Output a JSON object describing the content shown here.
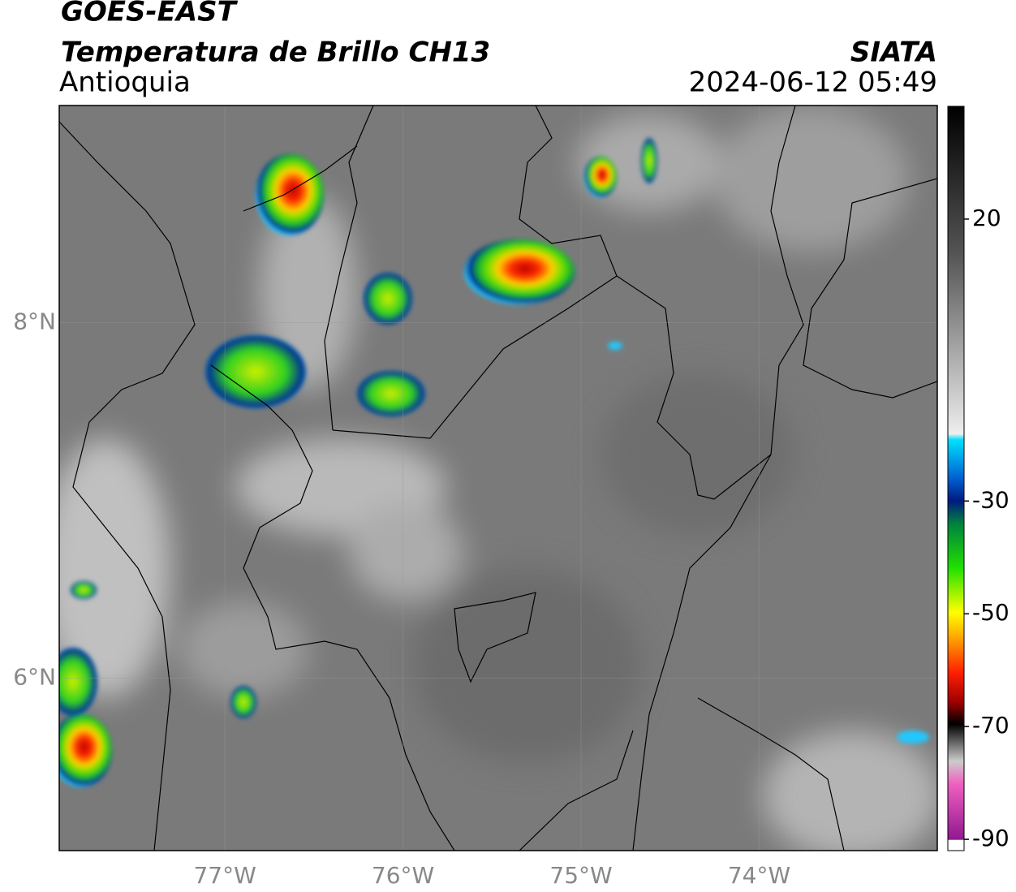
{
  "header": {
    "title": "GOES-EAST",
    "subtitle": "Temperatura de Brillo CH13",
    "region": "Antioquia",
    "source": "SIATA",
    "datetime": "2024-06-12 05:49"
  },
  "map": {
    "xlim": [
      -77.93,
      -73.0
    ],
    "ylim": [
      5.03,
      9.22
    ],
    "xticks": [
      {
        "value": -77,
        "label": "77°W"
      },
      {
        "value": -76,
        "label": "76°W"
      },
      {
        "value": -75,
        "label": "75°W"
      },
      {
        "value": -74,
        "label": "74°W"
      }
    ],
    "yticks": [
      {
        "value": 6,
        "label": "6°N"
      },
      {
        "value": 8,
        "label": "8°N"
      }
    ]
  },
  "colorbar": {
    "lim": [
      -92,
      40
    ],
    "ticks": [
      -90,
      -70,
      -50,
      -30,
      20
    ]
  }
}
